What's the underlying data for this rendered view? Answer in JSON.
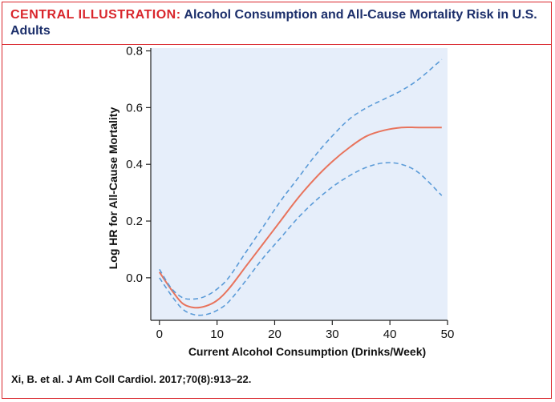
{
  "header": {
    "label": "CENTRAL ILLUSTRATION:",
    "title": "Alcohol Consumption and All-Cause Mortality Risk in U.S. Adults"
  },
  "citation": "Xi, B. et al. J Am Coll Cardiol. 2017;70(8):913–22.",
  "colors": {
    "accent_red": "#d9262c",
    "title_blue": "#1c2f6b",
    "plot_background": "#e6eefa",
    "estimate_line": "#e8735c",
    "ci_line": "#5b9bd8"
  },
  "chart_data": {
    "type": "line",
    "xlabel": "Current Alcohol Consumption (Drinks/Week)",
    "ylabel": "Log HR for All-Cause Mortality",
    "xlim": [
      -1.5,
      50
    ],
    "ylim": [
      -0.15,
      0.81
    ],
    "xticks": [
      0,
      10,
      20,
      30,
      40,
      50
    ],
    "yticks": [
      0.0,
      0.2,
      0.4,
      0.6,
      0.8
    ],
    "xtick_labels": [
      "0",
      "10",
      "20",
      "30",
      "40",
      "50"
    ],
    "ytick_labels": [
      "0.0",
      "0.2",
      "0.4",
      "0.6",
      "0.8"
    ],
    "grid": false,
    "series": [
      {
        "style": "solid",
        "x": [
          0,
          2,
          4,
          6,
          8,
          10,
          12,
          15,
          18,
          21,
          24,
          27,
          30,
          33,
          36,
          39,
          42,
          45,
          49
        ],
        "values": [
          0.02,
          -0.04,
          -0.09,
          -0.105,
          -0.1,
          -0.08,
          -0.04,
          0.04,
          0.12,
          0.2,
          0.28,
          0.35,
          0.41,
          0.46,
          0.5,
          0.52,
          0.53,
          0.53,
          0.53
        ]
      },
      {
        "style": "dashed",
        "x": [
          0,
          2,
          4,
          6,
          8,
          10,
          12,
          15,
          18,
          21,
          24,
          27,
          30,
          33,
          36,
          39,
          42,
          45,
          49
        ],
        "values": [
          0.03,
          -0.035,
          -0.07,
          -0.075,
          -0.065,
          -0.04,
          0.0,
          0.09,
          0.18,
          0.27,
          0.35,
          0.43,
          0.5,
          0.56,
          0.6,
          0.63,
          0.66,
          0.7,
          0.77
        ]
      },
      {
        "style": "dashed",
        "x": [
          0,
          2,
          4,
          6,
          8,
          10,
          12,
          15,
          18,
          21,
          24,
          27,
          30,
          33,
          36,
          39,
          42,
          45,
          49
        ],
        "values": [
          0.0,
          -0.06,
          -0.11,
          -0.13,
          -0.13,
          -0.115,
          -0.085,
          -0.01,
          0.07,
          0.14,
          0.21,
          0.27,
          0.32,
          0.36,
          0.39,
          0.405,
          0.4,
          0.37,
          0.29
        ]
      }
    ]
  }
}
